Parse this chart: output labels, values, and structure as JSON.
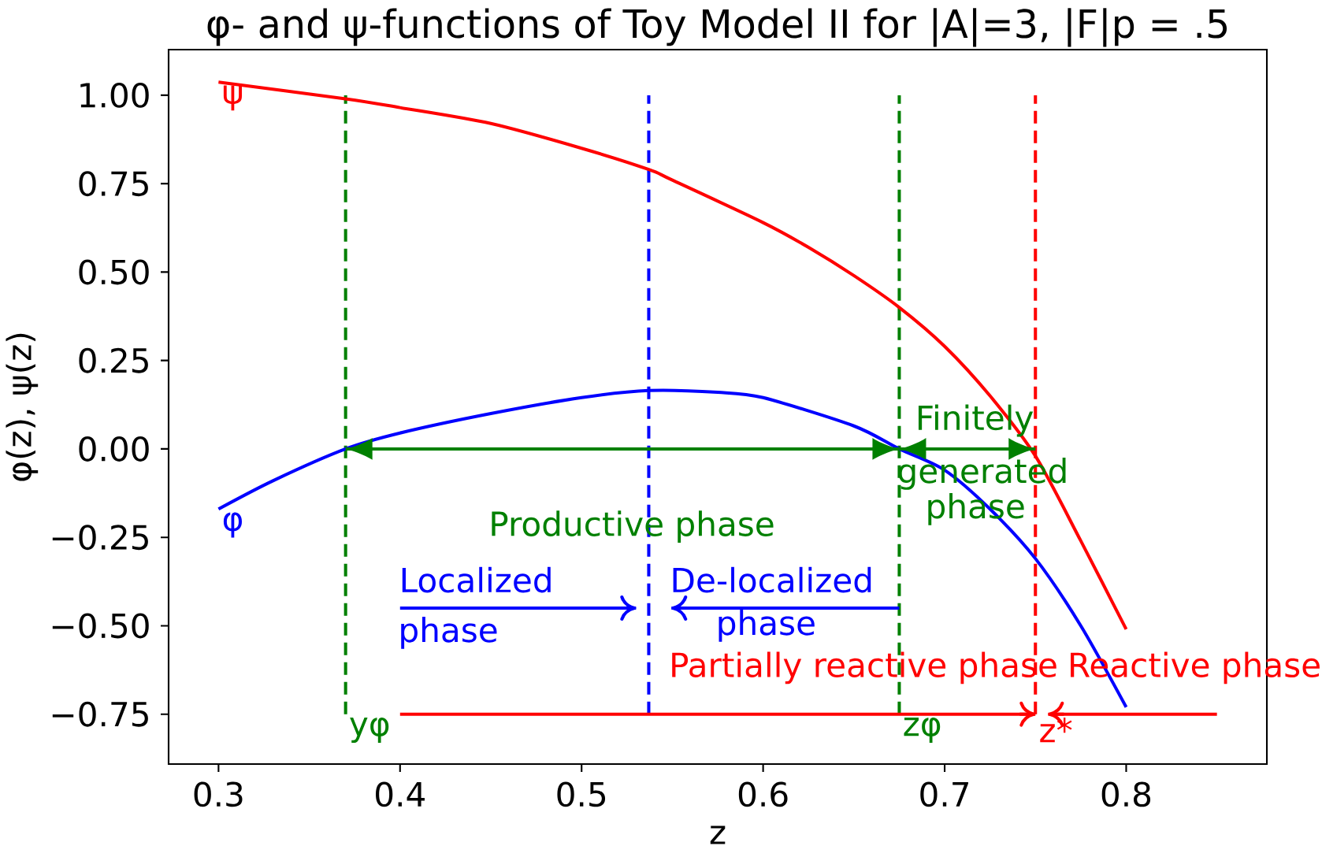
{
  "chart_data": {
    "type": "line",
    "title": "φ- and ψ-functions of Toy Model II for |A|=3, |F|p = .5",
    "xlabel": "z",
    "ylabel": "φ(z), ψ(z)",
    "xlim": [
      0.2725,
      0.8775
    ],
    "ylim": [
      -0.891,
      1.129
    ],
    "xticks": [
      0.3,
      0.4,
      0.5,
      0.6,
      0.7,
      0.8
    ],
    "yticks": [
      {
        "value": -0.75,
        "label": "−0.75"
      },
      {
        "value": -0.5,
        "label": "−0.50"
      },
      {
        "value": -0.25,
        "label": "−0.25"
      },
      {
        "value": 0,
        "label": "0.00"
      },
      {
        "value": 0.25,
        "label": "0.25"
      },
      {
        "value": 0.5,
        "label": "0.50"
      },
      {
        "value": 0.75,
        "label": "0.75"
      },
      {
        "value": 1.0,
        "label": "1.00"
      }
    ],
    "grid": false,
    "series": [
      {
        "name": "ψ",
        "color": "#ff0000",
        "x": [
          0.3,
          0.37,
          0.4,
          0.45,
          0.5,
          0.537,
          0.55,
          0.6,
          0.625,
          0.65,
          0.675,
          0.7,
          0.725,
          0.75,
          0.775,
          0.8
        ],
        "values": [
          1.037,
          0.99,
          0.965,
          0.92,
          0.85,
          0.79,
          0.76,
          0.64,
          0.57,
          0.49,
          0.4,
          0.29,
          0.15,
          -0.02,
          -0.26,
          -0.51
        ]
      },
      {
        "name": "φ",
        "color": "#0000ff",
        "x": [
          0.3,
          0.33,
          0.37,
          0.4,
          0.45,
          0.5,
          0.537,
          0.575,
          0.6,
          0.65,
          0.675,
          0.7,
          0.725,
          0.75,
          0.775,
          0.8
        ],
        "values": [
          -0.17,
          -0.09,
          0.0,
          0.045,
          0.1,
          0.145,
          0.165,
          0.16,
          0.145,
          0.065,
          0.0,
          -0.06,
          -0.17,
          -0.31,
          -0.5,
          -0.73
        ]
      },
      {
        "color": "#008000",
        "x": [
          0.37,
          0.675
        ],
        "values": [
          0,
          0
        ]
      },
      {
        "color": "#008000",
        "x": [
          0.675,
          0.75
        ],
        "values": [
          0,
          0
        ]
      },
      {
        "color": "#0000ff",
        "x": [
          0.4,
          0.53
        ],
        "values": [
          -0.45,
          -0.45
        ]
      },
      {
        "color": "#0000ff",
        "x": [
          0.675,
          0.5495
        ],
        "values": [
          -0.45,
          -0.45
        ]
      },
      {
        "color": "#ff0000",
        "x": [
          0.4,
          0.75
        ],
        "values": [
          -0.75,
          -0.75
        ]
      },
      {
        "color": "#ff0000",
        "x": [
          0.85,
          0.757
        ],
        "values": [
          -0.75,
          -0.75
        ]
      }
    ],
    "ref_lines": [
      {
        "axis": "x",
        "value": 0.37,
        "label": "yφ",
        "color": "#008000",
        "line_style": "dashed"
      },
      {
        "axis": "x",
        "value": 0.675,
        "label": "zφ",
        "color": "#008000",
        "line_style": "dashed"
      },
      {
        "axis": "x",
        "value": 0.537,
        "color": "#0000ff",
        "line_style": "dashed"
      },
      {
        "axis": "x",
        "value": 0.75,
        "label": "z*",
        "color": "#ff0000",
        "line_style": "dashed"
      }
    ],
    "annotations": [
      "Productive phase",
      "Finitely",
      "generated",
      "phase",
      "Localized",
      "phase",
      "De-localized",
      "phase",
      "Partially reactive phase",
      "Reactive phase"
    ]
  }
}
